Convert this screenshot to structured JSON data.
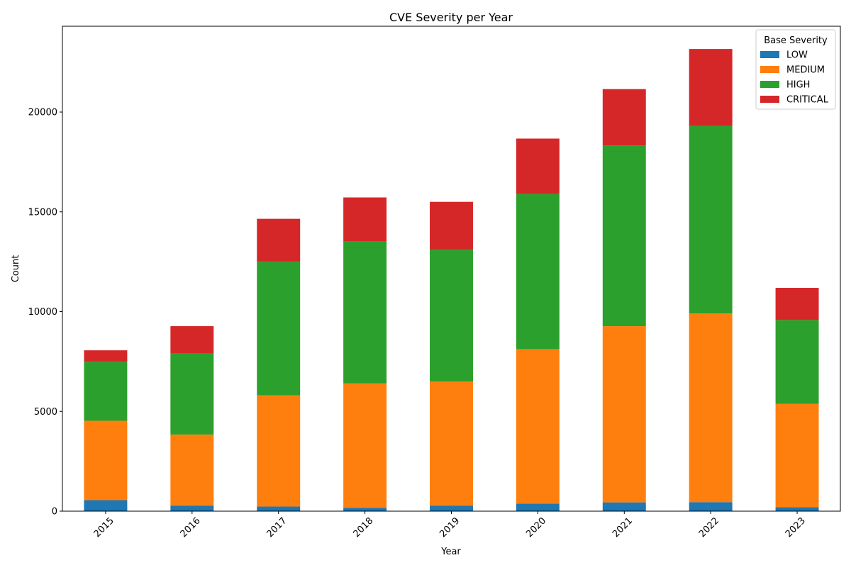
{
  "chart_data": {
    "type": "bar",
    "stacked": true,
    "title": "CVE Severity per Year",
    "xlabel": "Year",
    "ylabel": "Count",
    "categories": [
      "2015",
      "2016",
      "2017",
      "2018",
      "2019",
      "2020",
      "2021",
      "2022",
      "2023"
    ],
    "ylim": [
      0,
      24300
    ],
    "yticks": [
      0,
      5000,
      10000,
      15000,
      20000
    ],
    "grid": false,
    "legend": {
      "title": "Base Severity",
      "placement": "top-right"
    },
    "series": [
      {
        "name": "LOW",
        "color": "#1f77b4",
        "values": [
          550,
          280,
          230,
          170,
          280,
          380,
          440,
          450,
          200
        ]
      },
      {
        "name": "MEDIUM",
        "color": "#ff7f0e",
        "values": [
          3980,
          3560,
          5570,
          6230,
          6210,
          7740,
          8830,
          9460,
          5180
        ]
      },
      {
        "name": "HIGH",
        "color": "#2ca02c",
        "values": [
          2960,
          4060,
          6700,
          7110,
          6620,
          7780,
          9050,
          9400,
          4200
        ]
      },
      {
        "name": "CRITICAL",
        "color": "#d62728",
        "values": [
          570,
          1370,
          2150,
          2210,
          2390,
          2770,
          2830,
          3850,
          1610
        ]
      }
    ]
  }
}
